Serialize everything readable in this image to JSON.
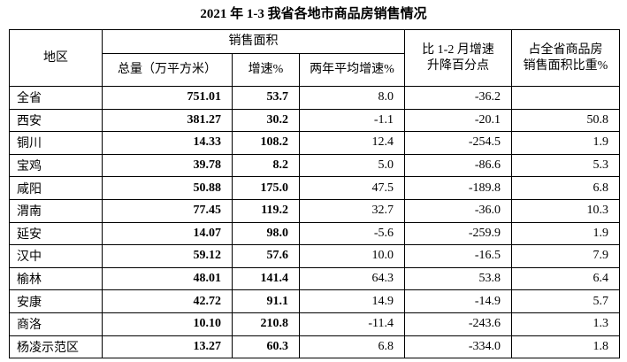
{
  "title": "2021 年 1-3 我省各地市商品房销售情况",
  "table": {
    "header": {
      "region": "地区",
      "group": "销售面积",
      "total": "总量（万平方米）",
      "growth": "增速%",
      "avg": "两年平均增速%",
      "change": [
        "比 1-2 月增速",
        "升降百分点"
      ],
      "share": [
        "占全省商品房",
        "销售面积比重%"
      ]
    },
    "rows": [
      [
        "全省",
        "751.01",
        "53.7",
        "8.0",
        "-36.2",
        null
      ],
      [
        "西安",
        "381.27",
        "30.2",
        "-1.1",
        "-20.1",
        "50.8"
      ],
      [
        "铜川",
        "14.33",
        "108.2",
        "12.4",
        "-254.5",
        "1.9"
      ],
      [
        "宝鸡",
        "39.78",
        "8.2",
        "5.0",
        "-86.6",
        "5.3"
      ],
      [
        "咸阳",
        "50.88",
        "175.0",
        "47.5",
        "-189.8",
        "6.8"
      ],
      [
        "渭南",
        "77.45",
        "119.2",
        "32.7",
        "-36.0",
        "10.3"
      ],
      [
        "延安",
        "14.07",
        "98.0",
        "-5.6",
        "-259.9",
        "1.9"
      ],
      [
        "汉中",
        "59.12",
        "57.6",
        "10.0",
        "-16.5",
        "7.9"
      ],
      [
        "榆林",
        "48.01",
        "141.4",
        "64.3",
        "53.8",
        "6.4"
      ],
      [
        "安康",
        "42.72",
        "91.1",
        "14.9",
        "-14.9",
        "5.7"
      ],
      [
        "商洛",
        "10.10",
        "210.8",
        "-11.4",
        "-243.6",
        "1.3"
      ],
      [
        "杨凌示范区",
        "13.27",
        "60.3",
        "6.8",
        "-334.0",
        "1.8"
      ]
    ]
  }
}
